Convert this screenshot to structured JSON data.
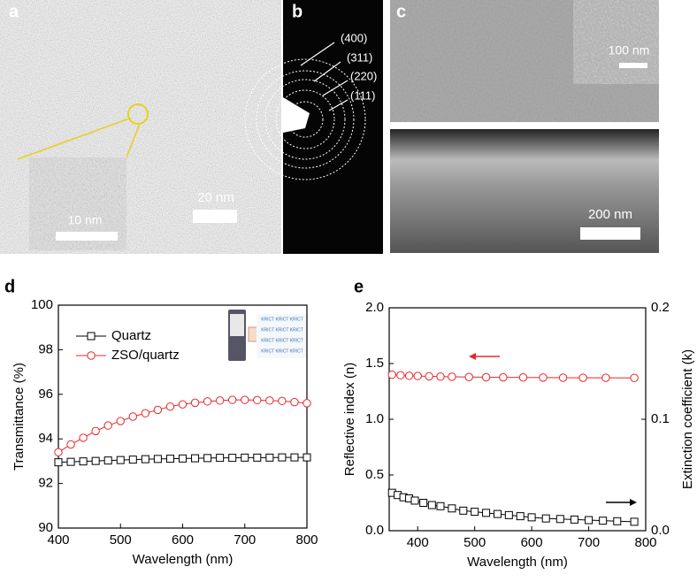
{
  "figure": {
    "panel_labels": [
      "a",
      "b",
      "c",
      "d",
      "e"
    ],
    "miller_indices": [
      "(400)",
      "(311)",
      "(220)",
      "(111)"
    ],
    "scale_bars": [
      "20 nm",
      "10 nm",
      "100 nm",
      "200 nm"
    ],
    "inset_text": [
      "KRICT KRICT KRICT",
      "KRICT KRICT KRICT",
      "KRICT KRICT KRICT",
      "KRICT KRICT KRICT"
    ]
  },
  "chart_data": [
    {
      "type": "line",
      "x_label": "Wavelength (nm)",
      "y_label": "Transmittance (%)",
      "xlim": [
        400,
        800
      ],
      "xticks": [
        400,
        500,
        600,
        700,
        800
      ],
      "ylim": [
        90,
        100
      ],
      "yticks": [
        90,
        92,
        94,
        96,
        98,
        100
      ],
      "legend": "upper left",
      "series": [
        {
          "name": "Quartz",
          "color": "#000000",
          "marker": "square",
          "x": [
            400,
            420,
            440,
            460,
            480,
            500,
            520,
            540,
            560,
            580,
            600,
            620,
            640,
            660,
            680,
            700,
            720,
            740,
            760,
            780,
            800
          ],
          "values": [
            92.95,
            92.97,
            92.99,
            93.01,
            93.03,
            93.05,
            93.07,
            93.09,
            93.1,
            93.11,
            93.12,
            93.13,
            93.14,
            93.15,
            93.15,
            93.16,
            93.16,
            93.16,
            93.17,
            93.17,
            93.17
          ]
        },
        {
          "name": "ZSO/quartz",
          "color": "#e8262a",
          "marker": "circle",
          "x": [
            400,
            420,
            440,
            460,
            480,
            500,
            520,
            540,
            560,
            580,
            600,
            620,
            640,
            660,
            680,
            700,
            720,
            740,
            760,
            780,
            800
          ],
          "values": [
            93.4,
            93.75,
            94.05,
            94.35,
            94.6,
            94.8,
            95.0,
            95.15,
            95.3,
            95.45,
            95.55,
            95.62,
            95.68,
            95.72,
            95.75,
            95.75,
            95.74,
            95.72,
            95.7,
            95.65,
            95.6
          ]
        }
      ]
    },
    {
      "type": "line",
      "x_label": "Wavelength (nm)",
      "y_label": "Reflective index (n)",
      "y2_label": "Extinction coefficient (k)",
      "xlim": [
        350,
        800
      ],
      "xticks": [
        400,
        500,
        600,
        700,
        800
      ],
      "ylim": [
        0,
        2
      ],
      "yticks": [
        {
          "value": 0,
          "label": "0.0"
        },
        {
          "value": 0.5,
          "label": "0.5"
        },
        {
          "value": 1,
          "label": "1.0"
        },
        {
          "value": 1.5,
          "label": "1.5"
        },
        {
          "value": 2,
          "label": "2.0"
        }
      ],
      "y2lim": [
        0,
        0.2
      ],
      "y2ticks": [
        {
          "value": 0,
          "label": "0.0"
        },
        0.1,
        0.2
      ],
      "series": [
        {
          "color": "#e8262a",
          "marker": "circle",
          "x": [
            355,
            370,
            385,
            400,
            420,
            440,
            460,
            490,
            520,
            550,
            585,
            620,
            655,
            690,
            730,
            780
          ],
          "values": [
            1.4,
            1.395,
            1.39,
            1.388,
            1.385,
            1.383,
            1.381,
            1.379,
            1.377,
            1.376,
            1.375,
            1.374,
            1.373,
            1.372,
            1.372,
            1.371
          ]
        },
        {
          "color": "#000000",
          "marker": "square",
          "axis": "y2",
          "x": [
            355,
            365,
            375,
            385,
            395,
            410,
            425,
            440,
            460,
            480,
            500,
            520,
            540,
            560,
            580,
            600,
            625,
            650,
            675,
            700,
            725,
            750,
            780
          ],
          "values": [
            0.034,
            0.032,
            0.03,
            0.029,
            0.027,
            0.025,
            0.023,
            0.022,
            0.02,
            0.018,
            0.017,
            0.016,
            0.015,
            0.014,
            0.013,
            0.012,
            0.011,
            0.0105,
            0.01,
            0.0095,
            0.009,
            0.0085,
            0.008
          ]
        }
      ]
    }
  ]
}
